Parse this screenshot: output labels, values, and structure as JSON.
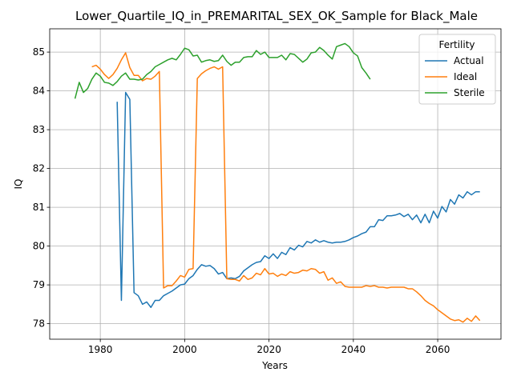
{
  "chart_data": {
    "type": "line",
    "title": "Lower_Quartile_IQ_in_PREMARITAL_SEX_OK_Sample for Black_Male",
    "xlabel": "Years",
    "ylabel": "IQ",
    "xlim": [
      1968,
      2075
    ],
    "ylim": [
      77.6,
      85.6
    ],
    "xticks": [
      1980,
      2000,
      2020,
      2040,
      2060
    ],
    "yticks": [
      78,
      79,
      80,
      81,
      82,
      83,
      84,
      85
    ],
    "grid": true,
    "legend": {
      "title": "Fertility",
      "position": "top-right"
    },
    "series": [
      {
        "name": "Actual",
        "color": "#1f77b4",
        "points": [
          [
            1984,
            83.72
          ],
          [
            1985,
            78.6
          ],
          [
            1986,
            83.96
          ],
          [
            1987,
            83.78
          ],
          [
            1988,
            78.8
          ],
          [
            1989,
            78.72
          ],
          [
            1990,
            78.5
          ],
          [
            1991,
            78.56
          ],
          [
            1992,
            78.42
          ],
          [
            1993,
            78.6
          ],
          [
            1994,
            78.6
          ],
          [
            1995,
            78.72
          ],
          [
            1996,
            78.78
          ],
          [
            1997,
            78.84
          ],
          [
            1998,
            78.92
          ],
          [
            1999,
            79.0
          ],
          [
            2000,
            79.02
          ],
          [
            2001,
            79.16
          ],
          [
            2002,
            79.24
          ],
          [
            2003,
            79.4
          ],
          [
            2004,
            79.52
          ],
          [
            2005,
            79.48
          ],
          [
            2006,
            79.5
          ],
          [
            2007,
            79.42
          ],
          [
            2008,
            79.28
          ],
          [
            2009,
            79.32
          ],
          [
            2010,
            79.16
          ],
          [
            2011,
            79.18
          ],
          [
            2012,
            79.16
          ],
          [
            2013,
            79.22
          ],
          [
            2014,
            79.36
          ],
          [
            2015,
            79.44
          ],
          [
            2016,
            79.52
          ],
          [
            2017,
            79.58
          ],
          [
            2018,
            79.6
          ],
          [
            2019,
            79.75
          ],
          [
            2020,
            79.68
          ],
          [
            2021,
            79.8
          ],
          [
            2022,
            79.68
          ],
          [
            2023,
            79.84
          ],
          [
            2024,
            79.78
          ],
          [
            2025,
            79.96
          ],
          [
            2026,
            79.9
          ],
          [
            2027,
            80.02
          ],
          [
            2028,
            79.98
          ],
          [
            2029,
            80.12
          ],
          [
            2030,
            80.08
          ],
          [
            2031,
            80.16
          ],
          [
            2032,
            80.1
          ],
          [
            2033,
            80.14
          ],
          [
            2034,
            80.1
          ],
          [
            2035,
            80.08
          ],
          [
            2036,
            80.1
          ],
          [
            2037,
            80.1
          ],
          [
            2038,
            80.12
          ],
          [
            2039,
            80.16
          ],
          [
            2040,
            80.22
          ],
          [
            2041,
            80.26
          ],
          [
            2042,
            80.32
          ],
          [
            2043,
            80.36
          ],
          [
            2044,
            80.5
          ],
          [
            2045,
            80.5
          ],
          [
            2046,
            80.68
          ],
          [
            2047,
            80.66
          ],
          [
            2048,
            80.78
          ],
          [
            2049,
            80.78
          ],
          [
            2050,
            80.8
          ],
          [
            2051,
            80.84
          ],
          [
            2052,
            80.76
          ],
          [
            2053,
            80.82
          ],
          [
            2054,
            80.68
          ],
          [
            2055,
            80.8
          ],
          [
            2056,
            80.6
          ],
          [
            2057,
            80.82
          ],
          [
            2058,
            80.6
          ],
          [
            2059,
            80.9
          ],
          [
            2060,
            80.72
          ],
          [
            2061,
            81.02
          ],
          [
            2062,
            80.88
          ],
          [
            2063,
            81.2
          ],
          [
            2064,
            81.08
          ],
          [
            2065,
            81.32
          ],
          [
            2066,
            81.24
          ],
          [
            2067,
            81.4
          ],
          [
            2068,
            81.32
          ],
          [
            2069,
            81.4
          ],
          [
            2070,
            81.4
          ]
        ]
      },
      {
        "name": "Ideal",
        "color": "#ff7f0e",
        "points": [
          [
            1978,
            84.62
          ],
          [
            1979,
            84.66
          ],
          [
            1980,
            84.56
          ],
          [
            1981,
            84.42
          ],
          [
            1982,
            84.32
          ],
          [
            1983,
            84.42
          ],
          [
            1984,
            84.58
          ],
          [
            1985,
            84.8
          ],
          [
            1986,
            84.98
          ],
          [
            1987,
            84.6
          ],
          [
            1988,
            84.4
          ],
          [
            1989,
            84.4
          ],
          [
            1990,
            84.26
          ],
          [
            1991,
            84.32
          ],
          [
            1992,
            84.3
          ],
          [
            1993,
            84.38
          ],
          [
            1994,
            84.5
          ],
          [
            1995,
            78.92
          ],
          [
            1996,
            78.98
          ],
          [
            1997,
            78.98
          ],
          [
            1998,
            79.1
          ],
          [
            1999,
            79.24
          ],
          [
            2000,
            79.2
          ],
          [
            2001,
            79.4
          ],
          [
            2002,
            79.42
          ],
          [
            2003,
            84.32
          ],
          [
            2004,
            84.44
          ],
          [
            2005,
            84.52
          ],
          [
            2006,
            84.58
          ],
          [
            2007,
            84.62
          ],
          [
            2008,
            84.56
          ],
          [
            2009,
            84.62
          ],
          [
            2010,
            79.16
          ],
          [
            2011,
            79.14
          ],
          [
            2012,
            79.14
          ],
          [
            2013,
            79.1
          ],
          [
            2014,
            79.24
          ],
          [
            2015,
            79.14
          ],
          [
            2016,
            79.18
          ],
          [
            2017,
            79.3
          ],
          [
            2018,
            79.26
          ],
          [
            2019,
            79.42
          ],
          [
            2020,
            79.28
          ],
          [
            2021,
            79.3
          ],
          [
            2022,
            79.22
          ],
          [
            2023,
            79.28
          ],
          [
            2024,
            79.24
          ],
          [
            2025,
            79.34
          ],
          [
            2026,
            79.3
          ],
          [
            2027,
            79.32
          ],
          [
            2028,
            79.38
          ],
          [
            2029,
            79.36
          ],
          [
            2030,
            79.42
          ],
          [
            2031,
            79.4
          ],
          [
            2032,
            79.3
          ],
          [
            2033,
            79.34
          ],
          [
            2034,
            79.12
          ],
          [
            2035,
            79.18
          ],
          [
            2036,
            79.04
          ],
          [
            2037,
            79.08
          ],
          [
            2038,
            78.96
          ],
          [
            2039,
            78.94
          ],
          [
            2040,
            78.94
          ],
          [
            2041,
            78.94
          ],
          [
            2042,
            78.94
          ],
          [
            2043,
            78.98
          ],
          [
            2044,
            78.96
          ],
          [
            2045,
            78.98
          ],
          [
            2046,
            78.94
          ],
          [
            2047,
            78.94
          ],
          [
            2048,
            78.92
          ],
          [
            2049,
            78.94
          ],
          [
            2050,
            78.94
          ],
          [
            2051,
            78.94
          ],
          [
            2052,
            78.94
          ],
          [
            2053,
            78.9
          ],
          [
            2054,
            78.9
          ],
          [
            2055,
            78.82
          ],
          [
            2056,
            78.72
          ],
          [
            2057,
            78.6
          ],
          [
            2058,
            78.52
          ],
          [
            2059,
            78.46
          ],
          [
            2060,
            78.36
          ],
          [
            2061,
            78.28
          ],
          [
            2062,
            78.2
          ],
          [
            2063,
            78.12
          ],
          [
            2064,
            78.08
          ],
          [
            2065,
            78.1
          ],
          [
            2066,
            78.04
          ],
          [
            2067,
            78.14
          ],
          [
            2068,
            78.06
          ],
          [
            2069,
            78.2
          ],
          [
            2070,
            78.08
          ]
        ]
      },
      {
        "name": "Sterile",
        "color": "#2ca02c",
        "points": [
          [
            1974,
            83.8
          ],
          [
            1975,
            84.22
          ],
          [
            1976,
            83.96
          ],
          [
            1977,
            84.06
          ],
          [
            1978,
            84.3
          ],
          [
            1979,
            84.46
          ],
          [
            1980,
            84.38
          ],
          [
            1981,
            84.22
          ],
          [
            1982,
            84.2
          ],
          [
            1983,
            84.14
          ],
          [
            1984,
            84.24
          ],
          [
            1985,
            84.38
          ],
          [
            1986,
            84.46
          ],
          [
            1987,
            84.3
          ],
          [
            1988,
            84.3
          ],
          [
            1989,
            84.28
          ],
          [
            1990,
            84.3
          ],
          [
            1991,
            84.42
          ],
          [
            1992,
            84.5
          ],
          [
            1993,
            84.62
          ],
          [
            1994,
            84.68
          ],
          [
            1995,
            84.74
          ],
          [
            1996,
            84.8
          ],
          [
            1997,
            84.84
          ],
          [
            1998,
            84.8
          ],
          [
            1999,
            84.94
          ],
          [
            2000,
            85.1
          ],
          [
            2001,
            85.06
          ],
          [
            2002,
            84.9
          ],
          [
            2003,
            84.92
          ],
          [
            2004,
            84.74
          ],
          [
            2005,
            84.78
          ],
          [
            2006,
            84.8
          ],
          [
            2007,
            84.76
          ],
          [
            2008,
            84.78
          ],
          [
            2009,
            84.92
          ],
          [
            2010,
            84.76
          ],
          [
            2011,
            84.66
          ],
          [
            2012,
            84.74
          ],
          [
            2013,
            84.74
          ],
          [
            2014,
            84.86
          ],
          [
            2015,
            84.88
          ],
          [
            2016,
            84.88
          ],
          [
            2017,
            85.04
          ],
          [
            2018,
            84.94
          ],
          [
            2019,
            85.0
          ],
          [
            2020,
            84.86
          ],
          [
            2021,
            84.86
          ],
          [
            2022,
            84.86
          ],
          [
            2023,
            84.92
          ],
          [
            2024,
            84.8
          ],
          [
            2025,
            84.96
          ],
          [
            2026,
            84.94
          ],
          [
            2027,
            84.84
          ],
          [
            2028,
            84.74
          ],
          [
            2029,
            84.82
          ],
          [
            2030,
            84.98
          ],
          [
            2031,
            85.0
          ],
          [
            2032,
            85.12
          ],
          [
            2033,
            85.04
          ],
          [
            2034,
            84.92
          ],
          [
            2035,
            84.82
          ],
          [
            2036,
            85.14
          ],
          [
            2037,
            85.18
          ],
          [
            2038,
            85.22
          ],
          [
            2039,
            85.14
          ],
          [
            2040,
            84.98
          ],
          [
            2041,
            84.9
          ],
          [
            2042,
            84.6
          ],
          [
            2043,
            84.46
          ],
          [
            2044,
            84.3
          ]
        ]
      }
    ]
  }
}
